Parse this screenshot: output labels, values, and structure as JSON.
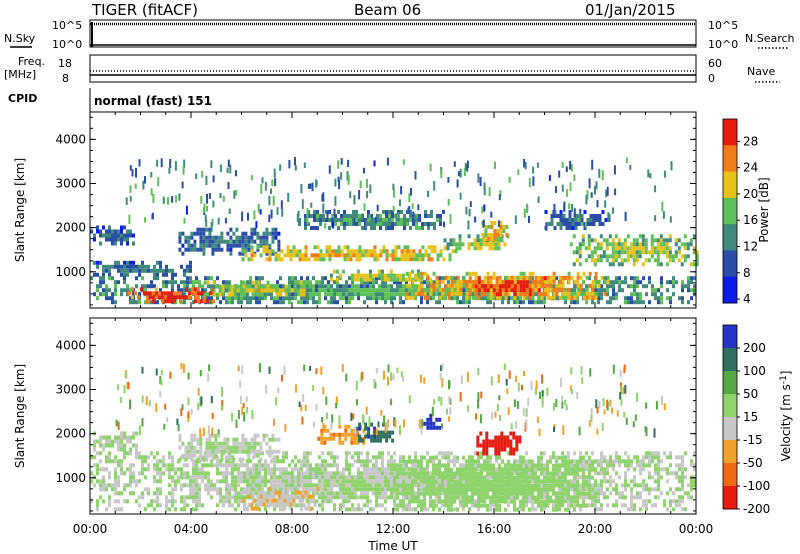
{
  "header": {
    "radar": "TIGER (fitACF)",
    "beam": "Beam 06",
    "date": "01/Jan/2015"
  },
  "noise_panel": {
    "left_label": "N.Sky",
    "right_label": "N.Search",
    "left_ticks": [
      "10^5",
      "10^0"
    ],
    "right_ticks": [
      "10^5",
      "10^0"
    ]
  },
  "freq_panel": {
    "left_label_1": "Freq.",
    "left_label_2": "[MHz]",
    "right_label": "Nave",
    "left_ticks": [
      "18",
      "8"
    ],
    "right_ticks": [
      "60",
      "0"
    ]
  },
  "cpid": {
    "label": "CPID",
    "value": "normal (fast) 151"
  },
  "x_axis": {
    "label": "Time UT",
    "ticks": [
      "00:00",
      "04:00",
      "08:00",
      "12:00",
      "16:00",
      "20:00",
      "00:00"
    ],
    "range_hours": [
      0,
      24
    ]
  },
  "colors": {
    "power": [
      "#0a1de6",
      "#2a4ea8",
      "#3f8a7c",
      "#5fbf58",
      "#e8c21a",
      "#f27b1a",
      "#e61c10"
    ],
    "velocity": [
      "#2533c7",
      "#2e6f62",
      "#54a844",
      "#8fd36d",
      "#c8c8c8",
      "#f0a22a",
      "#f06a14",
      "#e61c10"
    ]
  },
  "chart_data": [
    {
      "type": "heatmap",
      "title": "",
      "ylabel": "Slant Range [km]",
      "xlabel": "",
      "xlim": [
        0,
        24
      ],
      "ylim": [
        180,
        4620
      ],
      "yticks": [
        1000,
        2000,
        3000,
        4000
      ],
      "colorbar": {
        "label": "Power [dB]",
        "ticks": [
          "28",
          "24",
          "20",
          "16",
          "12",
          "8",
          "4"
        ],
        "range": [
          0,
          30
        ]
      },
      "features": [
        {
          "t0": 0.0,
          "t1": 1.8,
          "r0": 1650,
          "r1": 2050,
          "value": 9
        },
        {
          "t0": 0.0,
          "t1": 4.0,
          "r0": 950,
          "r1": 1250,
          "value": 10
        },
        {
          "t0": 0.0,
          "t1": 24.0,
          "r0": 300,
          "r1": 900,
          "value": 13
        },
        {
          "t0": 1.5,
          "t1": 5.0,
          "r0": 320,
          "r1": 650,
          "value": 28
        },
        {
          "t0": 3.5,
          "t1": 7.5,
          "r0": 1450,
          "r1": 2000,
          "value": 10
        },
        {
          "t0": 6.0,
          "t1": 14.5,
          "r0": 1250,
          "r1": 1600,
          "value": 21
        },
        {
          "t0": 4.5,
          "t1": 9.0,
          "r0": 450,
          "r1": 800,
          "value": 18
        },
        {
          "t0": 9.5,
          "t1": 13.5,
          "r0": 800,
          "r1": 1050,
          "value": 19
        },
        {
          "t0": 12.5,
          "t1": 20.5,
          "r0": 400,
          "r1": 1000,
          "value": 22
        },
        {
          "t0": 15.0,
          "t1": 18.0,
          "r0": 450,
          "r1": 900,
          "value": 28
        },
        {
          "t0": 14.0,
          "t1": 16.5,
          "r0": 1500,
          "r1": 1850,
          "value": 17
        },
        {
          "t0": 15.5,
          "t1": 16.5,
          "r0": 1750,
          "r1": 2150,
          "value": 21
        },
        {
          "t0": 19.0,
          "t1": 24.0,
          "r0": 1200,
          "r1": 1850,
          "value": 17
        },
        {
          "t0": 8.0,
          "t1": 14.0,
          "r0": 2000,
          "r1": 2400,
          "value": 12
        },
        {
          "t0": 18.0,
          "t1": 20.5,
          "r0": 2000,
          "r1": 2400,
          "value": 10
        }
      ]
    },
    {
      "type": "heatmap",
      "title": "",
      "ylabel": "Slant Range [km]",
      "xlabel": "Time UT",
      "xlim": [
        0,
        24
      ],
      "ylim": [
        180,
        4620
      ],
      "yticks": [
        1000,
        2000,
        3000,
        4000
      ],
      "colorbar": {
        "label": "Velocity [m s",
        "label_sup": "-1",
        "label_end": "]",
        "ticks": [
          "200",
          "100",
          "50",
          "15",
          "-15",
          "-50",
          "-100",
          "-200"
        ],
        "range": [
          -250,
          250
        ]
      },
      "features": [
        {
          "t0": 0.0,
          "t1": 24.0,
          "r0": 300,
          "r1": 1600,
          "value": 0
        },
        {
          "t0": 0.0,
          "t1": 1.8,
          "r0": 1650,
          "r1": 2050,
          "value": 0
        },
        {
          "t0": 3.5,
          "t1": 7.5,
          "r0": 1450,
          "r1": 2000,
          "value": 0
        },
        {
          "t0": 9.0,
          "t1": 11.0,
          "r0": 1800,
          "r1": 2200,
          "value": -120
        },
        {
          "t0": 10.5,
          "t1": 12.0,
          "r0": 1850,
          "r1": 2250,
          "value": 180
        },
        {
          "t0": 13.2,
          "t1": 13.8,
          "r0": 2100,
          "r1": 2450,
          "value": 220
        },
        {
          "t0": 15.3,
          "t1": 17.0,
          "r0": 1550,
          "r1": 2050,
          "value": -210
        },
        {
          "t0": 6.0,
          "t1": 9.0,
          "r0": 300,
          "r1": 800,
          "value": -60
        },
        {
          "t0": 12.0,
          "t1": 20.0,
          "r0": 300,
          "r1": 1500,
          "value": 30
        }
      ]
    }
  ]
}
